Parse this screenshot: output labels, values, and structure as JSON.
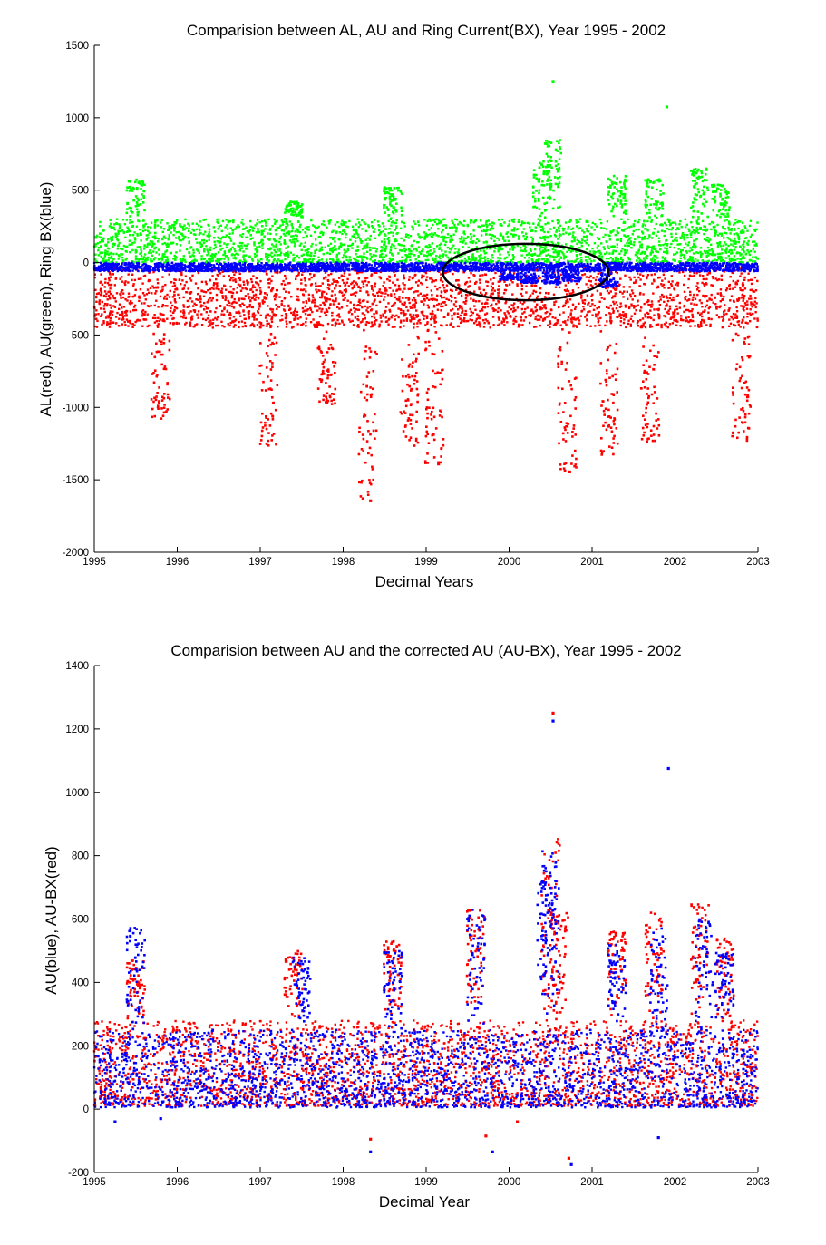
{
  "chart_data": [
    {
      "type": "scatter",
      "title": "Comparision between AL, AU and Ring Current(BX), Year 1995 - 2002",
      "xlabel": "Decimal Years",
      "ylabel": "AL(red), AU(green), Ring BX(blue)",
      "xlim": [
        1995,
        2003
      ],
      "ylim": [
        -2000,
        1500
      ],
      "xticks": [
        "1995",
        "1996",
        "1997",
        "1998",
        "1999",
        "2000",
        "2001",
        "2002",
        "2003"
      ],
      "yticks": [
        "1500",
        "1000",
        "500",
        "0",
        "-500",
        "-1000",
        "-1500",
        "-2000"
      ],
      "grid": false,
      "marker": "dot",
      "colors": {
        "al": "#ff0000",
        "au": "#00ff00",
        "bx": "#0000ff",
        "annotation": "#000000"
      },
      "series": [
        {
          "key": "au",
          "color": "#00ff00",
          "typical_range": [
            0,
            300
          ],
          "bursts": [
            [
              1995.5,
              575
            ],
            [
              1997.4,
              420
            ],
            [
              1998.6,
              520
            ],
            [
              2000.4,
              700
            ],
            [
              2000.52,
              850
            ],
            [
              2001.3,
              600
            ],
            [
              2001.75,
              580
            ],
            [
              2002.3,
              650
            ],
            [
              2002.55,
              540
            ]
          ]
        },
        {
          "key": "al",
          "color": "#ff0000",
          "typical_range": [
            -450,
            -30
          ],
          "bursts": [
            [
              1995.8,
              -1080
            ],
            [
              1997.1,
              -1290
            ],
            [
              1997.8,
              -980
            ],
            [
              1998.3,
              -1630
            ],
            [
              1998.8,
              -1270
            ],
            [
              1999.1,
              -1390
            ],
            [
              2000.7,
              -1440
            ],
            [
              2001.2,
              -1330
            ],
            [
              2001.7,
              -1240
            ],
            [
              2002.8,
              -1260
            ]
          ]
        },
        {
          "key": "bx",
          "color": "#0000ff",
          "typical_range": [
            -60,
            0
          ],
          "bursts": [
            [
              2000.0,
              -120
            ],
            [
              2000.25,
              -140
            ],
            [
              2000.5,
              -150
            ],
            [
              2000.75,
              -130
            ],
            [
              2001.2,
              -170
            ]
          ]
        }
      ],
      "outliers": [
        {
          "series": "au",
          "x": 2000.53,
          "y": 1250
        },
        {
          "series": "au",
          "x": 2001.9,
          "y": 1075
        },
        {
          "series": "al",
          "x": 1998.33,
          "y": -1645
        },
        {
          "series": "al",
          "x": 2000.73,
          "y": -1445
        },
        {
          "series": "al",
          "x": 1999.15,
          "y": -1390
        }
      ],
      "annotation": {
        "shape": "ellipse",
        "center": [
          2000.2,
          -65
        ],
        "radii_data": [
          1.0,
          195
        ]
      }
    },
    {
      "type": "scatter",
      "title": "Comparision between AU and the corrected AU (AU-BX), Year 1995 - 2002",
      "xlabel": "Decimal Year",
      "ylabel": "AU(blue), AU-BX(red)",
      "xlim": [
        1995,
        2003
      ],
      "ylim": [
        -200,
        1400
      ],
      "xticks": [
        "1995",
        "1996",
        "1997",
        "1998",
        "1999",
        "2000",
        "2001",
        "2002",
        "2003"
      ],
      "yticks": [
        "1400",
        "1200",
        "1000",
        "800",
        "600",
        "400",
        "200",
        "0",
        "-200"
      ],
      "grid": false,
      "marker": "dot",
      "colors": {
        "au": "#0000ff",
        "au_bx": "#ff0000"
      },
      "series": [
        {
          "key": "au_bx",
          "color": "#ff0000",
          "typical_range": [
            10,
            280
          ],
          "bursts": [
            [
              1995.5,
              470
            ],
            [
              1997.4,
              500
            ],
            [
              1998.6,
              530
            ],
            [
              1999.6,
              630
            ],
            [
              2000.5,
              855
            ],
            [
              2000.6,
              620
            ],
            [
              2001.3,
              560
            ],
            [
              2001.75,
              620
            ],
            [
              2002.3,
              650
            ],
            [
              2002.6,
              540
            ]
          ]
        },
        {
          "key": "au",
          "color": "#0000ff",
          "typical_range": [
            5,
            250
          ],
          "bursts": [
            [
              1995.5,
              575
            ],
            [
              1997.5,
              480
            ],
            [
              1998.6,
              510
            ],
            [
              1999.6,
              640
            ],
            [
              2000.5,
              835
            ],
            [
              2000.45,
              725
            ],
            [
              2001.3,
              520
            ],
            [
              2001.8,
              580
            ],
            [
              2002.35,
              600
            ],
            [
              2002.6,
              500
            ]
          ]
        }
      ],
      "outliers": [
        {
          "series": "au_bx",
          "x": 2000.53,
          "y": 1250
        },
        {
          "series": "au",
          "x": 2000.53,
          "y": 1225
        },
        {
          "series": "au",
          "x": 2001.92,
          "y": 1075
        },
        {
          "series": "au",
          "x": 1998.33,
          "y": -135
        },
        {
          "series": "au_bx",
          "x": 1998.33,
          "y": -95
        },
        {
          "series": "au_bx",
          "x": 2000.72,
          "y": -155
        },
        {
          "series": "au",
          "x": 2000.75,
          "y": -175
        },
        {
          "series": "au_bx",
          "x": 1999.72,
          "y": -85
        },
        {
          "series": "au",
          "x": 1999.8,
          "y": -135
        },
        {
          "series": "au",
          "x": 2001.8,
          "y": -90
        },
        {
          "series": "au_bx",
          "x": 2000.1,
          "y": -40
        },
        {
          "series": "au",
          "x": 1995.25,
          "y": -40
        },
        {
          "series": "au",
          "x": 1995.8,
          "y": -30
        }
      ]
    }
  ]
}
